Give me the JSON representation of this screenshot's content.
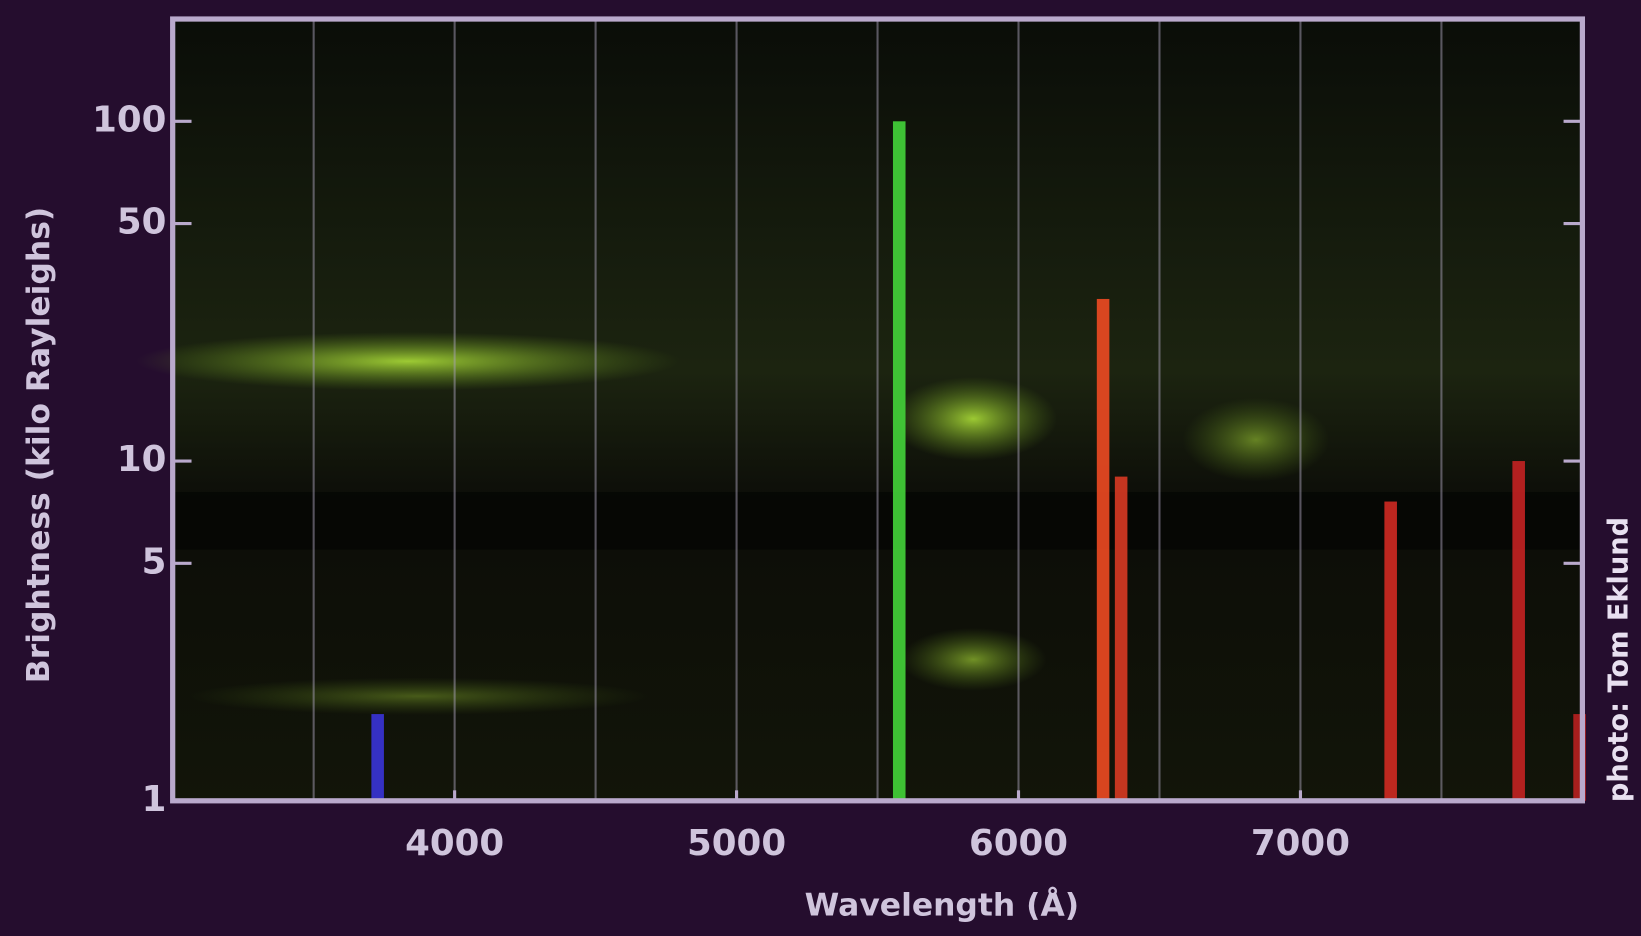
{
  "chart_data": {
    "type": "stem",
    "x_label": "Wavelength (Å)",
    "y_label": "Brightness (kilo Rayleighs)",
    "credit": "photo: Tom Eklund",
    "x": [
      3727,
      5577,
      6300,
      6364,
      7320,
      7774,
      7990
    ],
    "values": [
      1.8,
      100,
      30,
      9,
      7.6,
      10,
      1.8
    ],
    "colors": [
      "#3a34d8",
      "#44d43a",
      "#ee4a22",
      "#d83a24",
      "#d02a22",
      "#c42222",
      "#b82020"
    ],
    "xlim": [
      3000,
      8000
    ],
    "xticks": [
      4000,
      5000,
      6000,
      7000
    ],
    "xgrid": [
      3500,
      4000,
      4500,
      5000,
      5500,
      6000,
      6500,
      7000,
      7500
    ],
    "ylim": [
      1,
      200
    ],
    "yticks": [
      1,
      5,
      10,
      50,
      100
    ],
    "ylog": true,
    "grid": true
  }
}
